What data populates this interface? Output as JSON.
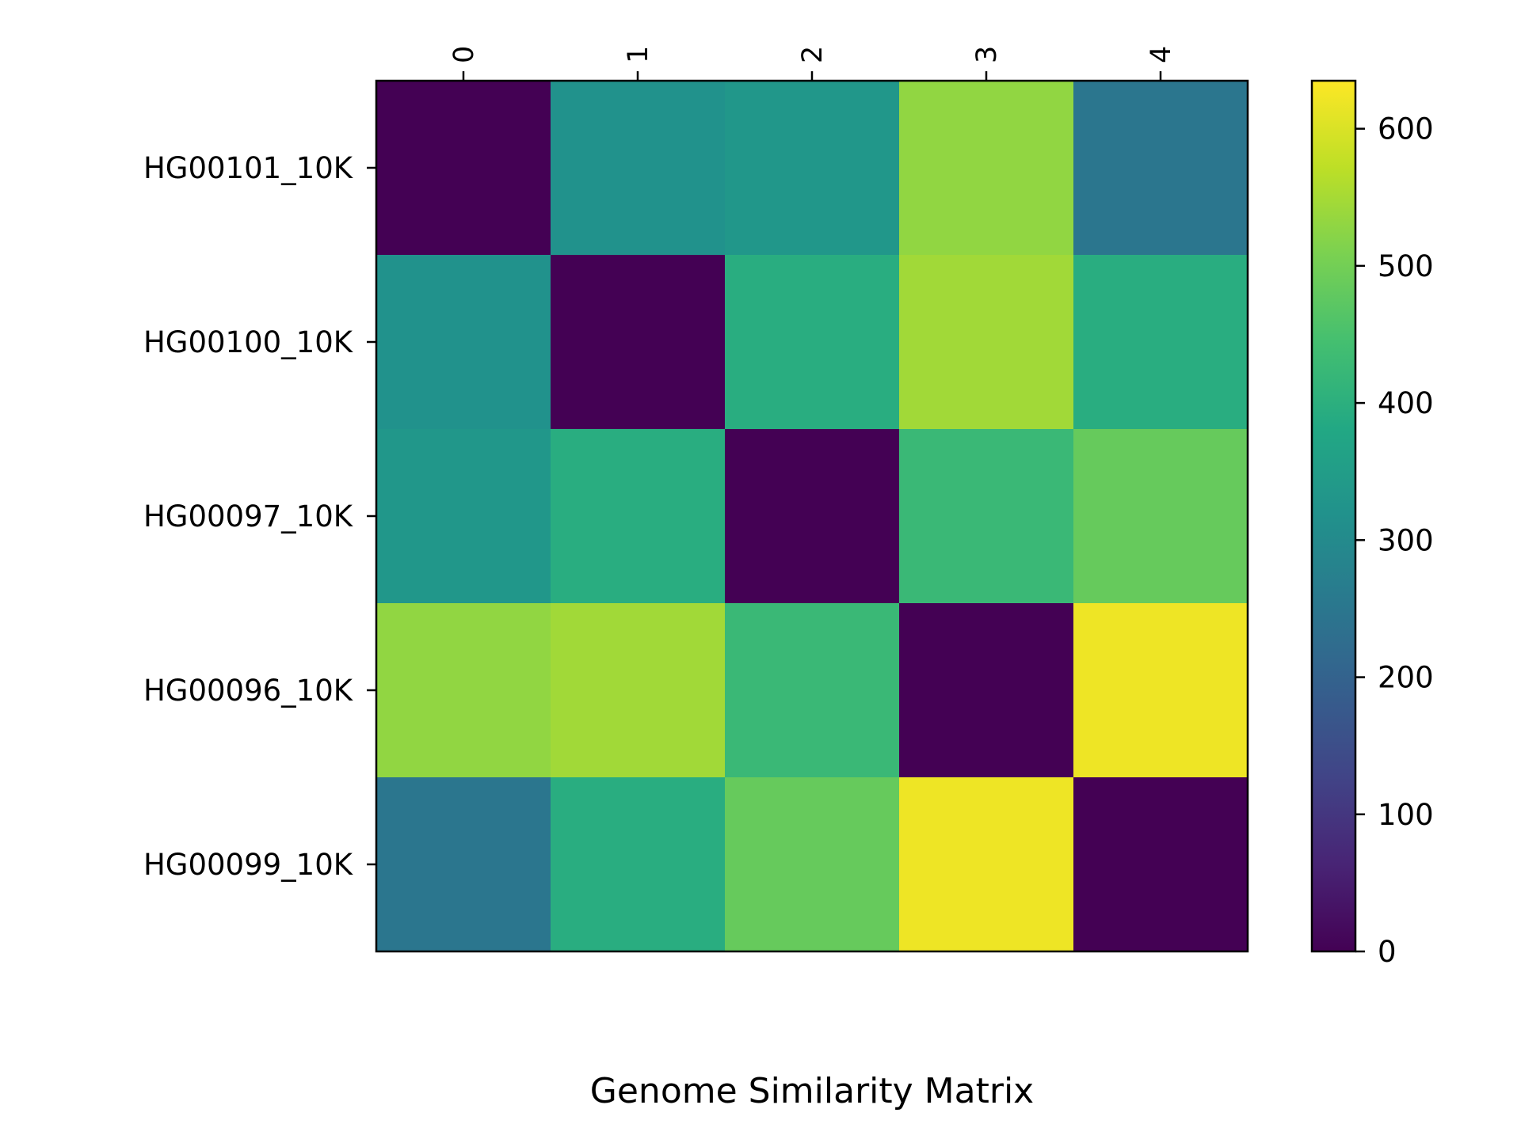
{
  "chart_data": {
    "type": "heatmap",
    "title": "Genome Similarity Matrix",
    "row_labels": [
      "HG00101_10K",
      "HG00100_10K",
      "HG00097_10K",
      "HG00096_10K",
      "HG00099_10K"
    ],
    "col_labels": [
      "0",
      "1",
      "2",
      "3",
      "4"
    ],
    "values": [
      [
        0,
        320,
        335,
        530,
        250
      ],
      [
        320,
        0,
        395,
        545,
        395
      ],
      [
        335,
        395,
        0,
        425,
        485
      ],
      [
        530,
        545,
        425,
        0,
        620
      ],
      [
        250,
        395,
        485,
        620,
        0
      ]
    ],
    "colorbar": {
      "range": [
        0,
        635
      ],
      "ticks": [
        0,
        100,
        200,
        300,
        400,
        500,
        600
      ],
      "tick_labels": [
        "0",
        "100",
        "200",
        "300",
        "400",
        "500",
        "600"
      ],
      "colormap": "viridis"
    }
  }
}
